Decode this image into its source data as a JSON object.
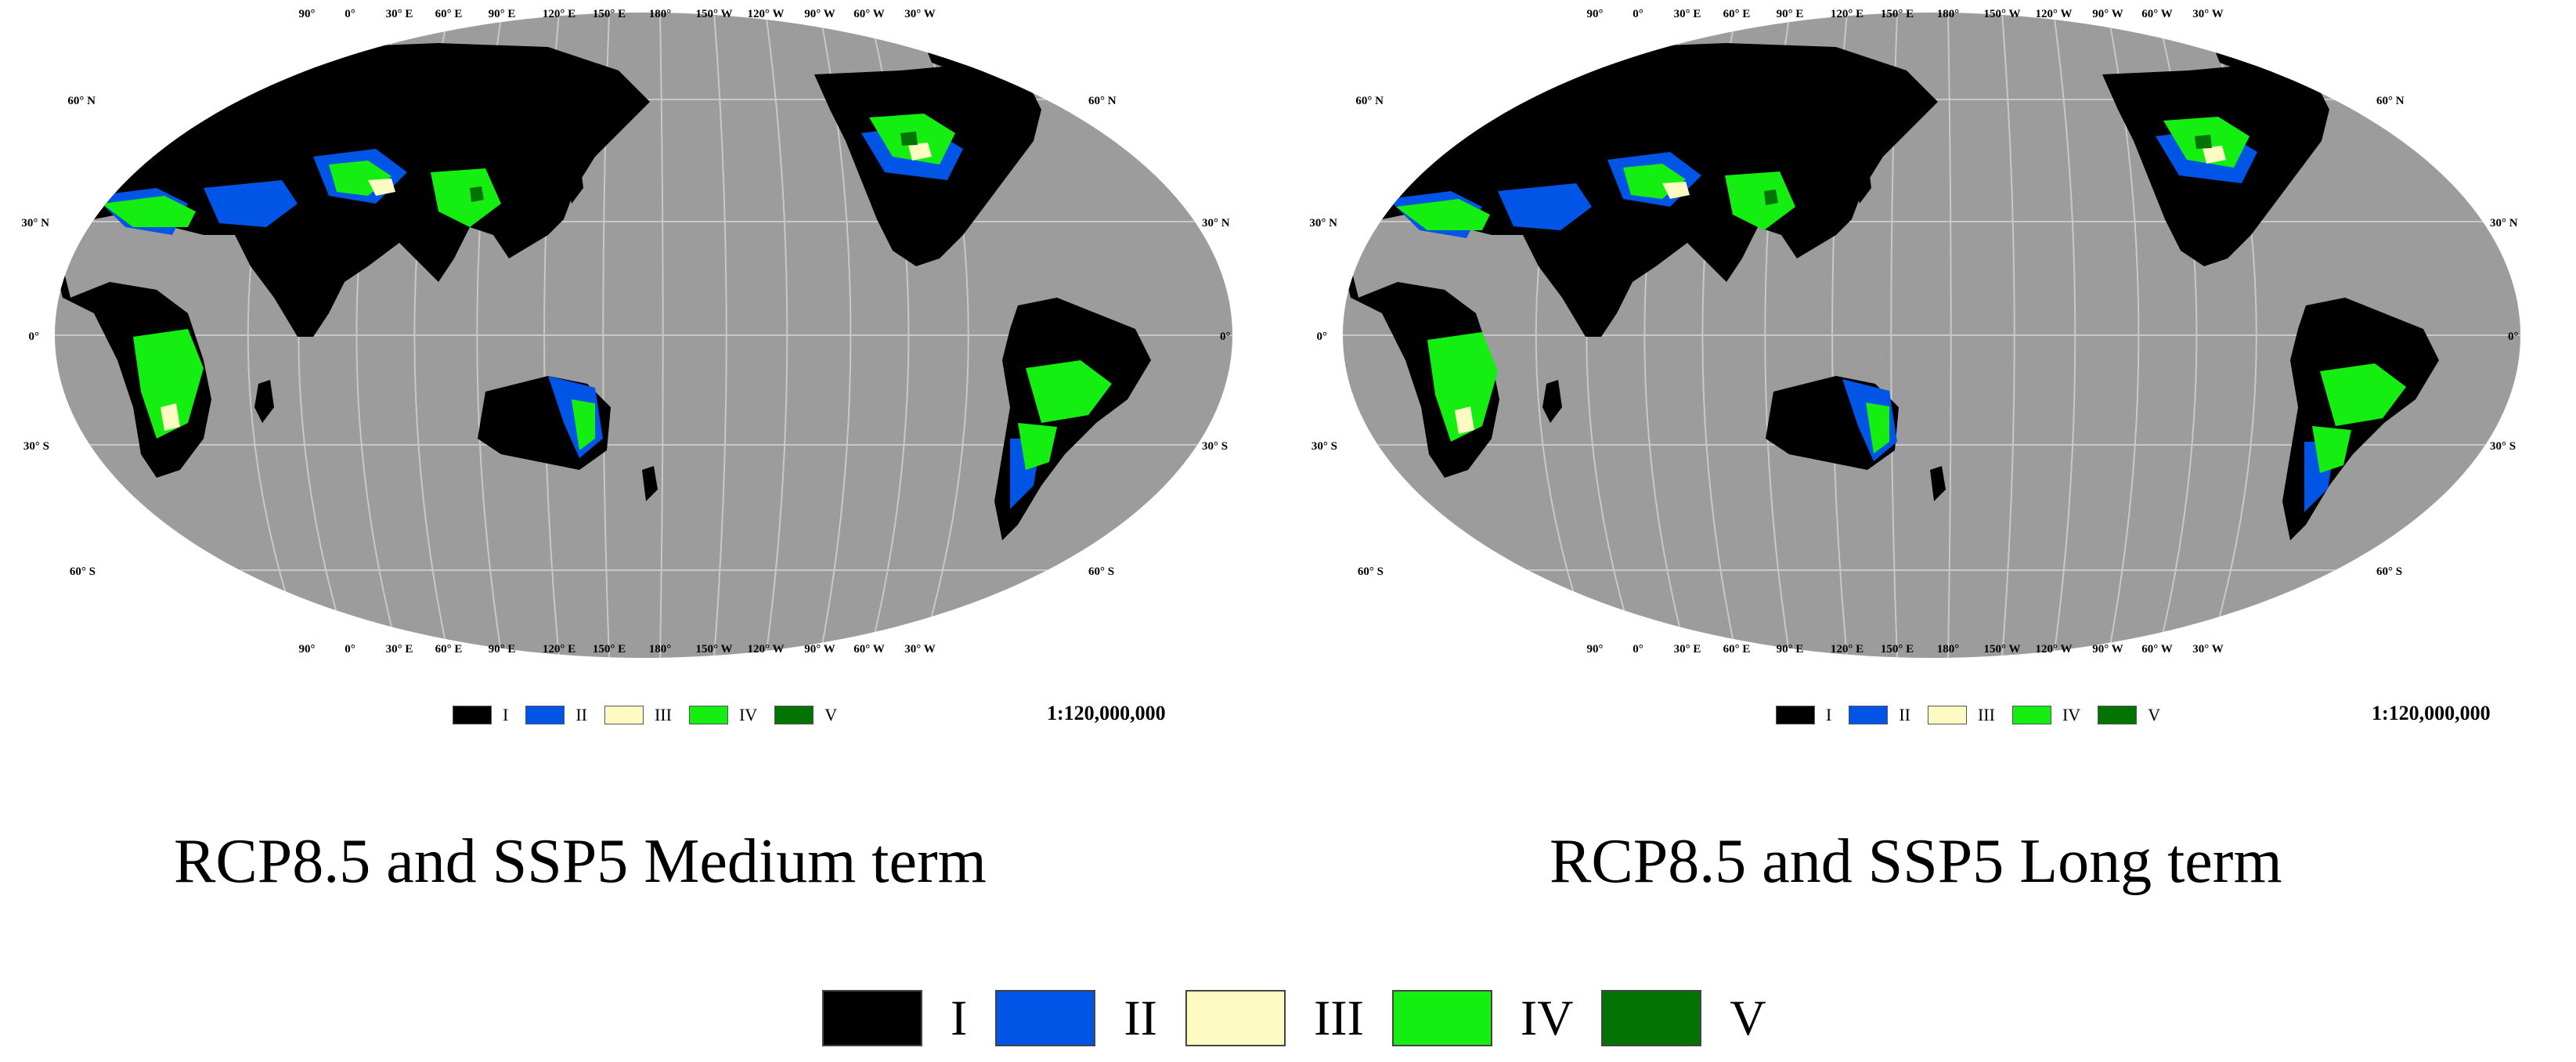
{
  "panels": [
    {
      "caption": "RCP8.5 and SSP5 Medium term",
      "scale": "1:120,000,000",
      "top_lon_labels": [
        "90°",
        "0°",
        "30° E",
        "60° E",
        "90° E",
        "120° E",
        "150° E",
        "180°",
        "150° W",
        "120° W",
        "90° W",
        "60° W",
        "30° W"
      ],
      "left_lat_labels": [
        "60° N",
        "30° N",
        "0°",
        "30° S",
        "60° S"
      ],
      "right_lat_labels": [
        "60° N",
        "30° N",
        "0°",
        "30° S",
        "60° S"
      ]
    },
    {
      "caption": "RCP8.5 and SSP5 Long term",
      "scale": "1:120,000,000",
      "top_lon_labels": [
        "90°",
        "0°",
        "30° E",
        "60° E",
        "90° E",
        "120° E",
        "150° E",
        "180°",
        "150° W",
        "120° W",
        "90° W",
        "60° W",
        "30° W"
      ],
      "left_lat_labels": [
        "60° N",
        "30° N",
        "0°",
        "30° S",
        "60° S"
      ],
      "right_lat_labels": [
        "60° N",
        "30° N",
        "0°",
        "30° S",
        "60° S"
      ]
    }
  ],
  "legend": {
    "classes": [
      {
        "label": "I",
        "color": "#000000"
      },
      {
        "label": "II",
        "color": "#0055e6"
      },
      {
        "label": "III",
        "color": "#fdfbc2"
      },
      {
        "label": "IV",
        "color": "#15ee11"
      },
      {
        "label": "V",
        "color": "#037304"
      }
    ]
  },
  "colors": {
    "ocean": "#9c9c9c",
    "graticule": "#c8c8c8"
  }
}
